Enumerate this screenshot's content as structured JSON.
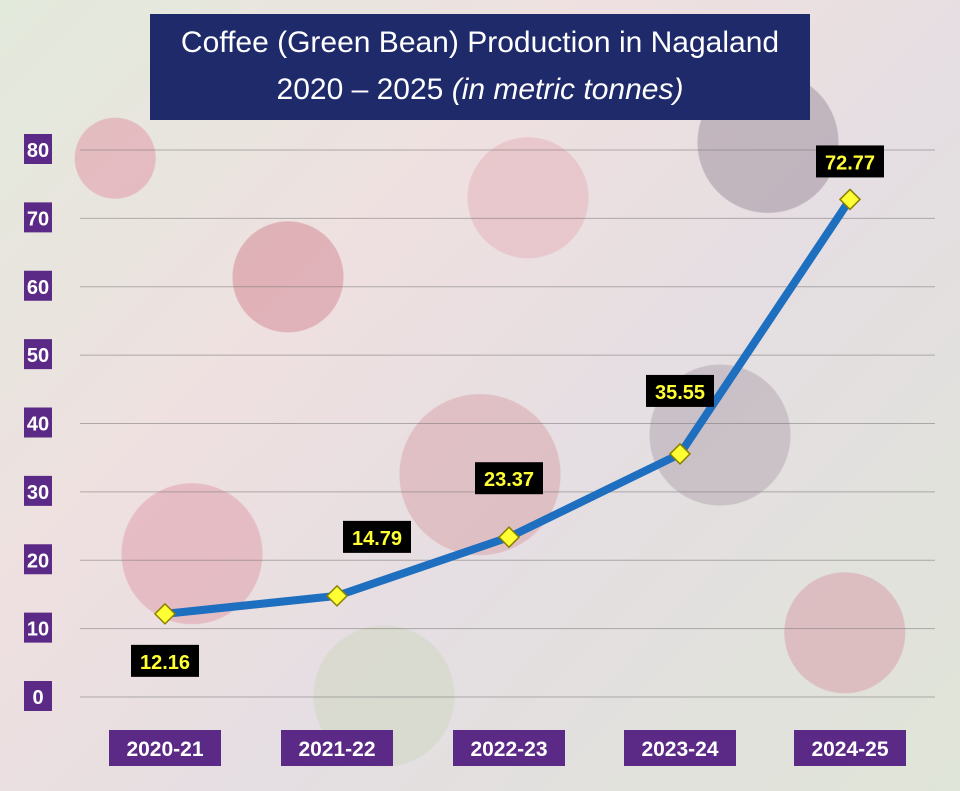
{
  "chart_data": {
    "type": "line",
    "title_line1": "Coffee (Green Bean) Production in Nagaland",
    "title_line2_main": "2020 – 2025 ",
    "title_line2_italic": "(in metric tonnes)",
    "categories": [
      "2020-21",
      "2021-22",
      "2022-23",
      "2023-24",
      "2024-25"
    ],
    "series": [
      {
        "values": [
          12.16,
          14.79,
          23.37,
          35.55,
          72.77
        ]
      }
    ],
    "data_labels": [
      "12.16",
      "14.79",
      "23.37",
      "35.55",
      "72.77"
    ],
    "y_ticks": [
      0,
      10,
      20,
      30,
      40,
      50,
      60,
      70,
      80
    ],
    "ylim": [
      0,
      80
    ],
    "grid": true,
    "legend": "none",
    "colors": {
      "line": "#1f6fc0",
      "marker": "#ffff33",
      "label_bg": "#000000",
      "label_text": "#ffff33",
      "tick_bg": "#5b2a86",
      "title_bg": "#1f2a6b"
    }
  }
}
